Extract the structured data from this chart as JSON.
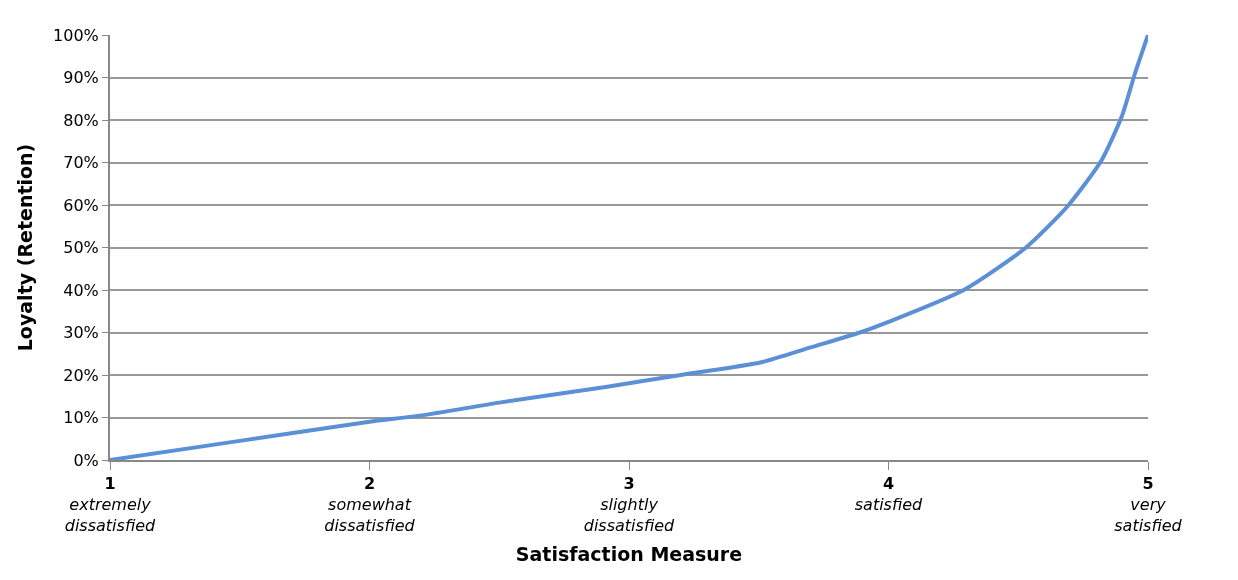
{
  "chart_data": {
    "type": "line",
    "xlabel": "Satisfaction Measure",
    "ylabel": "Loyalty (Retention)",
    "x": [
      1,
      1.5,
      2,
      2.2,
      2.5,
      2.91,
      3.2,
      3.51,
      3.7,
      3.89,
      4.0,
      4.29,
      4.53,
      4.69,
      4.82,
      4.9,
      4.95,
      5
    ],
    "series": [
      {
        "color": "#5b8fd6",
        "values": [
          0,
          4.5,
          9,
          10.5,
          13.5,
          17.2,
          20,
          23,
          26.5,
          30,
          32.5,
          40,
          50,
          59.7,
          70.4,
          81,
          91,
          100
        ]
      }
    ],
    "xlim": [
      1,
      5
    ],
    "xticks": [
      {
        "value": 1,
        "label": "1\nextremely\ndissatisfied"
      },
      {
        "value": 2,
        "label": "2\nsomewhat\ndissatisfied"
      },
      {
        "value": 3,
        "label": "3\nslightly\ndissatisfied"
      },
      {
        "value": 4,
        "label": "4\nsatisfied"
      },
      {
        "value": 5,
        "label": "5\nvery\nsatisfied"
      }
    ],
    "ylim": [
      0,
      100
    ],
    "yticks": [
      {
        "value": 0,
        "label": "0%"
      },
      {
        "value": 10,
        "label": "10%"
      },
      {
        "value": 20,
        "label": "20%"
      },
      {
        "value": 30,
        "label": "30%"
      },
      {
        "value": 40,
        "label": "40%"
      },
      {
        "value": 50,
        "label": "50%"
      },
      {
        "value": 60,
        "label": "60%"
      },
      {
        "value": 70,
        "label": "70%"
      },
      {
        "value": 80,
        "label": "80%"
      },
      {
        "value": 90,
        "label": "90%"
      },
      {
        "value": 100,
        "label": "100%"
      }
    ],
    "grid": "y",
    "marker": "none",
    "line_style": "solid"
  }
}
